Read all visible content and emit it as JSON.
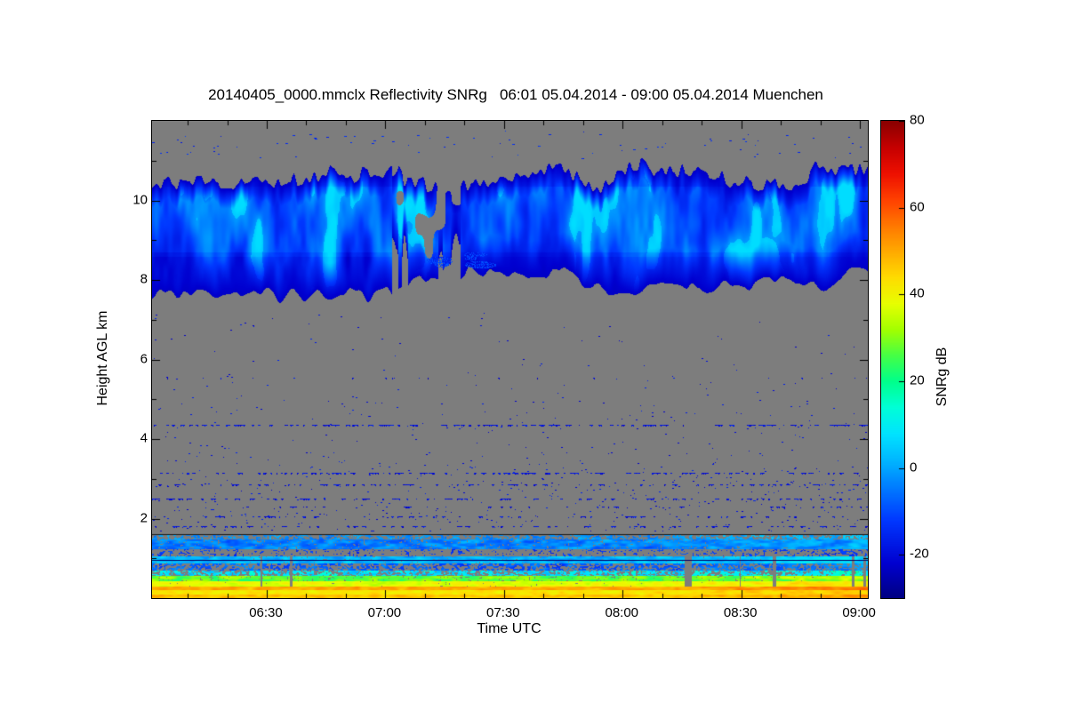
{
  "chart_data": {
    "type": "heatmap",
    "title": "20140405_0000.mmclx Reflectivity SNRg   06:01 05.04.2014 - 09:00 05.04.2014 Muenchen",
    "xlabel": "Time UTC",
    "ylabel": "Height AGL km",
    "colorbar_label": "SNRg dB",
    "x_axis": {
      "start_minutes": 361,
      "end_minutes": 542,
      "minor_step_minutes": 10,
      "ticks": [
        {
          "minutes": 390,
          "label": "06:30"
        },
        {
          "minutes": 420,
          "label": "07:00"
        },
        {
          "minutes": 450,
          "label": "07:30"
        },
        {
          "minutes": 480,
          "label": "08:00"
        },
        {
          "minutes": 510,
          "label": "08:30"
        },
        {
          "minutes": 540,
          "label": "09:00"
        }
      ]
    },
    "y_axis": {
      "min_km": 0,
      "max_km": 12,
      "minor_step_km": 1,
      "ticks": [
        {
          "km": 2,
          "label": "2"
        },
        {
          "km": 4,
          "label": "4"
        },
        {
          "km": 6,
          "label": "6"
        },
        {
          "km": 8,
          "label": "8"
        },
        {
          "km": 10,
          "label": "10"
        }
      ]
    },
    "colorbar": {
      "min_db": -30,
      "max_db": 80,
      "ticks": [
        {
          "db": 80,
          "label": "80"
        },
        {
          "db": 60,
          "label": "60"
        },
        {
          "db": 40,
          "label": "40"
        },
        {
          "db": 20,
          "label": "20"
        },
        {
          "db": 0,
          "label": "0"
        },
        {
          "db": -20,
          "label": "-20"
        }
      ],
      "stops": [
        [
          -30,
          "#000082"
        ],
        [
          -22,
          "#0000d0"
        ],
        [
          -12,
          "#0038ff"
        ],
        [
          -4,
          "#0080ff"
        ],
        [
          2,
          "#00b8ff"
        ],
        [
          8,
          "#00e4ff"
        ],
        [
          14,
          "#00ffd8"
        ],
        [
          20,
          "#00ff8c"
        ],
        [
          26,
          "#46ff46"
        ],
        [
          32,
          "#a4ff00"
        ],
        [
          38,
          "#e8ff00"
        ],
        [
          44,
          "#ffdc00"
        ],
        [
          50,
          "#ffaa00"
        ],
        [
          56,
          "#ff7800"
        ],
        [
          62,
          "#ff4000"
        ],
        [
          68,
          "#ee1000"
        ],
        [
          74,
          "#c60000"
        ],
        [
          80,
          "#8b0000"
        ]
      ]
    },
    "no_data_color": "#7d7d7d",
    "seed": 1337,
    "features": {
      "cirrus_cloud": {
        "top_km": 10.55,
        "base_left_km": 7.65,
        "base_right_km": 8.15,
        "gap_frac": [
          0.335,
          0.43
        ],
        "db_min": -25,
        "db_max": 7
      },
      "cloud_fragments": {
        "count": 6,
        "t_range": [
          0.33,
          0.48
        ],
        "km_range": [
          8.2,
          8.9
        ],
        "db": -12
      },
      "upper_speckles": {
        "km_min": 11.05,
        "km_max": 11.75,
        "count": 80,
        "db": -15
      },
      "mid_speckles": {
        "km_min": 1.7,
        "km_max": 7.2,
        "density": 0.004,
        "db": -19
      },
      "speckle_lines": [
        {
          "km": 5.55,
          "cover": 0.08
        },
        {
          "km": 4.35,
          "cover": 0.5
        },
        {
          "km": 3.15,
          "cover": 0.45
        },
        {
          "km": 2.85,
          "cover": 0.3
        },
        {
          "km": 2.5,
          "cover": 0.35
        },
        {
          "km": 2.3,
          "cover": 0.3
        },
        {
          "km": 2.05,
          "cover": 0.28
        },
        {
          "km": 1.8,
          "cover": 0.32
        }
      ],
      "boundary_layer_bands": [
        {
          "h0": 1.48,
          "h1": 1.6,
          "db": -2,
          "spread": 6,
          "cover": 0.45
        },
        {
          "h0": 1.22,
          "h1": 1.48,
          "db": -4,
          "spread": 8,
          "cover": 0.85
        },
        {
          "h0": 1.05,
          "h1": 1.22,
          "db": -12,
          "spread": 6,
          "cover": 0.25
        },
        {
          "h0": 0.88,
          "h1": 1.05,
          "db": 2,
          "spread": 7,
          "cover": 0.9
        },
        {
          "h0": 0.7,
          "h1": 0.88,
          "db": -8,
          "spread": 8,
          "cover": 0.5
        },
        {
          "h0": 0.55,
          "h1": 0.7,
          "db": 8,
          "spread": 10,
          "cover": 0.55
        },
        {
          "h0": 0.42,
          "h1": 0.55,
          "db": 28,
          "spread": 9,
          "cover": 0.85
        },
        {
          "h0": 0.3,
          "h1": 0.42,
          "db": 38,
          "spread": 6,
          "cover": 0.95
        },
        {
          "h0": 0.2,
          "h1": 0.3,
          "db": 50,
          "spread": 6,
          "cover": 1
        },
        {
          "h0": 0.1,
          "h1": 0.2,
          "db": 42,
          "spread": 5,
          "cover": 1
        },
        {
          "h0": 0.0,
          "h1": 0.1,
          "db": 47,
          "spread": 5,
          "cover": 1
        }
      ],
      "overlay_lines": [
        {
          "km": 1.62,
          "color": "#1a1a1a"
        },
        {
          "km": 0.97,
          "color": "#000066"
        }
      ]
    }
  }
}
